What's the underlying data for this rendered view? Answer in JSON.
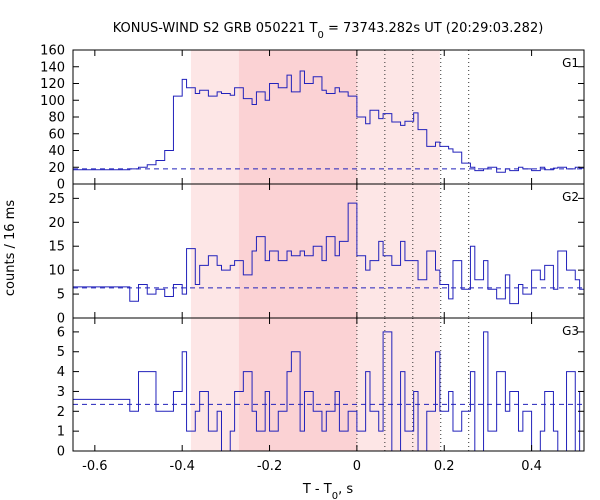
{
  "chart_data": {
    "type": "line",
    "title": {
      "prefix": "KONUS-WIND S2 GRB 050221 T",
      "sub": "0",
      "suffix": " = 73743.282s UT (20:29:03.282)"
    },
    "xlabel": {
      "prefix": "T - T",
      "sub": "0",
      "suffix": ", s"
    },
    "ylabel": "counts / 16 ms",
    "xlim": [
      -0.65,
      0.52
    ],
    "xticks": [
      -0.6,
      -0.4,
      -0.2,
      0,
      0.2,
      0.4
    ],
    "xtick_labels": [
      "-0.6",
      "-0.4",
      "-0.2",
      "0",
      "0.2",
      "0.4"
    ],
    "shaded_regions": [
      {
        "x": [
          -0.38,
          0.19
        ],
        "color": "#fde6e6"
      },
      {
        "x": [
          -0.27,
          0.0
        ],
        "color": "#fbd2d4"
      }
    ],
    "vlines": [
      0.0,
      0.064,
      0.128,
      0.192,
      0.256
    ],
    "line_color": "#2222bb",
    "panels": [
      {
        "name": "G1",
        "ylim": [
          0,
          160
        ],
        "yticks": [
          0,
          20,
          40,
          60,
          80,
          100,
          120,
          140,
          160
        ],
        "ytick_labels": [
          "0",
          "20",
          "40",
          "60",
          "80",
          "100",
          "120",
          "140",
          "160"
        ],
        "background_level": 18,
        "x": [
          -0.65,
          -0.52,
          -0.5,
          -0.48,
          -0.46,
          -0.44,
          -0.42,
          -0.4,
          -0.39,
          -0.37,
          -0.36,
          -0.34,
          -0.32,
          -0.31,
          -0.29,
          -0.28,
          -0.26,
          -0.24,
          -0.23,
          -0.21,
          -0.2,
          -0.18,
          -0.16,
          -0.15,
          -0.13,
          -0.12,
          -0.1,
          -0.08,
          -0.07,
          -0.05,
          -0.04,
          -0.02,
          0.0,
          0.02,
          0.03,
          0.05,
          0.06,
          0.08,
          0.1,
          0.11,
          0.13,
          0.14,
          0.16,
          0.18,
          0.19,
          0.21,
          0.22,
          0.24,
          0.26,
          0.27,
          0.29,
          0.3,
          0.32,
          0.34,
          0.35,
          0.37,
          0.38,
          0.4,
          0.42,
          0.43,
          0.45,
          0.46,
          0.48,
          0.5,
          0.51
        ],
        "y": [
          17,
          18,
          20,
          23,
          28,
          40,
          105,
          125,
          115,
          108,
          112,
          105,
          110,
          108,
          106,
          115,
          102,
          95,
          110,
          100,
          120,
          115,
          130,
          110,
          135,
          120,
          128,
          112,
          108,
          115,
          110,
          105,
          80,
          72,
          88,
          78,
          84,
          74,
          70,
          75,
          85,
          65,
          45,
          50,
          45,
          42,
          38,
          25,
          20,
          16,
          18,
          20,
          14,
          18,
          16,
          20,
          18,
          16,
          20,
          17,
          19,
          20,
          18,
          20,
          19
        ]
      },
      {
        "name": "G2",
        "ylim": [
          0,
          28
        ],
        "yticks": [
          0,
          5,
          10,
          15,
          20,
          25
        ],
        "ytick_labels": [
          "0",
          "5",
          "10",
          "15",
          "20",
          "25"
        ],
        "background_level": 6.3,
        "x": [
          -0.65,
          -0.52,
          -0.5,
          -0.48,
          -0.46,
          -0.44,
          -0.42,
          -0.4,
          -0.39,
          -0.37,
          -0.36,
          -0.34,
          -0.32,
          -0.31,
          -0.29,
          -0.28,
          -0.26,
          -0.24,
          -0.23,
          -0.21,
          -0.2,
          -0.18,
          -0.16,
          -0.15,
          -0.13,
          -0.12,
          -0.1,
          -0.08,
          -0.07,
          -0.05,
          -0.04,
          -0.02,
          0.0,
          0.02,
          0.03,
          0.05,
          0.06,
          0.08,
          0.1,
          0.11,
          0.13,
          0.14,
          0.16,
          0.18,
          0.19,
          0.21,
          0.22,
          0.24,
          0.26,
          0.27,
          0.29,
          0.3,
          0.32,
          0.34,
          0.35,
          0.37,
          0.38,
          0.4,
          0.42,
          0.43,
          0.45,
          0.46,
          0.48,
          0.5,
          0.51
        ],
        "y": [
          6.5,
          3.5,
          7,
          5,
          6,
          4.5,
          7,
          5,
          14.5,
          7,
          11,
          13,
          11,
          10,
          11,
          12,
          9,
          14,
          17,
          12,
          14,
          12,
          14,
          13,
          14,
          13,
          15,
          12,
          17,
          13,
          16,
          24,
          13,
          10,
          12,
          16,
          13,
          11,
          16,
          12,
          12,
          8,
          14,
          10,
          7,
          4,
          12,
          6,
          15,
          8,
          12,
          6,
          4,
          9,
          3,
          7,
          5,
          10,
          8,
          11,
          6,
          14,
          10,
          8,
          6
        ]
      },
      {
        "name": "G3",
        "ylim": [
          0,
          6.7
        ],
        "yticks": [
          0,
          1,
          2,
          3,
          4,
          5,
          6
        ],
        "ytick_labels": [
          "0",
          "1",
          "2",
          "3",
          "4",
          "5",
          "6"
        ],
        "background_level": 2.35,
        "x": [
          -0.65,
          -0.52,
          -0.5,
          -0.48,
          -0.46,
          -0.44,
          -0.42,
          -0.4,
          -0.39,
          -0.37,
          -0.36,
          -0.34,
          -0.32,
          -0.31,
          -0.29,
          -0.28,
          -0.26,
          -0.24,
          -0.23,
          -0.21,
          -0.2,
          -0.18,
          -0.16,
          -0.15,
          -0.13,
          -0.12,
          -0.1,
          -0.08,
          -0.07,
          -0.05,
          -0.04,
          -0.02,
          0.0,
          0.02,
          0.03,
          0.05,
          0.06,
          0.08,
          0.1,
          0.11,
          0.13,
          0.14,
          0.16,
          0.18,
          0.19,
          0.21,
          0.22,
          0.24,
          0.26,
          0.27,
          0.29,
          0.3,
          0.32,
          0.34,
          0.35,
          0.37,
          0.38,
          0.4,
          0.42,
          0.43,
          0.45,
          0.46,
          0.48,
          0.5,
          0.51
        ],
        "y": [
          2.6,
          2.0,
          4.0,
          4.0,
          2.0,
          2.0,
          3.0,
          5.0,
          1.0,
          2.0,
          3.0,
          1.0,
          2.0,
          0.0,
          1.0,
          3.0,
          4.0,
          2.0,
          1.0,
          3.0,
          1.0,
          2.0,
          4.0,
          5.0,
          1.0,
          3.0,
          2.0,
          1.0,
          2.0,
          3.0,
          1.0,
          2.0,
          1.0,
          4.0,
          2.0,
          1.0,
          6.0,
          0.0,
          4.0,
          1.0,
          3.0,
          0.0,
          2.0,
          5.0,
          2.0,
          3.0,
          1.0,
          2.0,
          4.0,
          0.0,
          6.0,
          1.0,
          4.0,
          2.0,
          3.0,
          1.0,
          2.0,
          0.0,
          1.0,
          3.0,
          1.0,
          0.0,
          4.0,
          0.0,
          3.0
        ]
      }
    ]
  }
}
